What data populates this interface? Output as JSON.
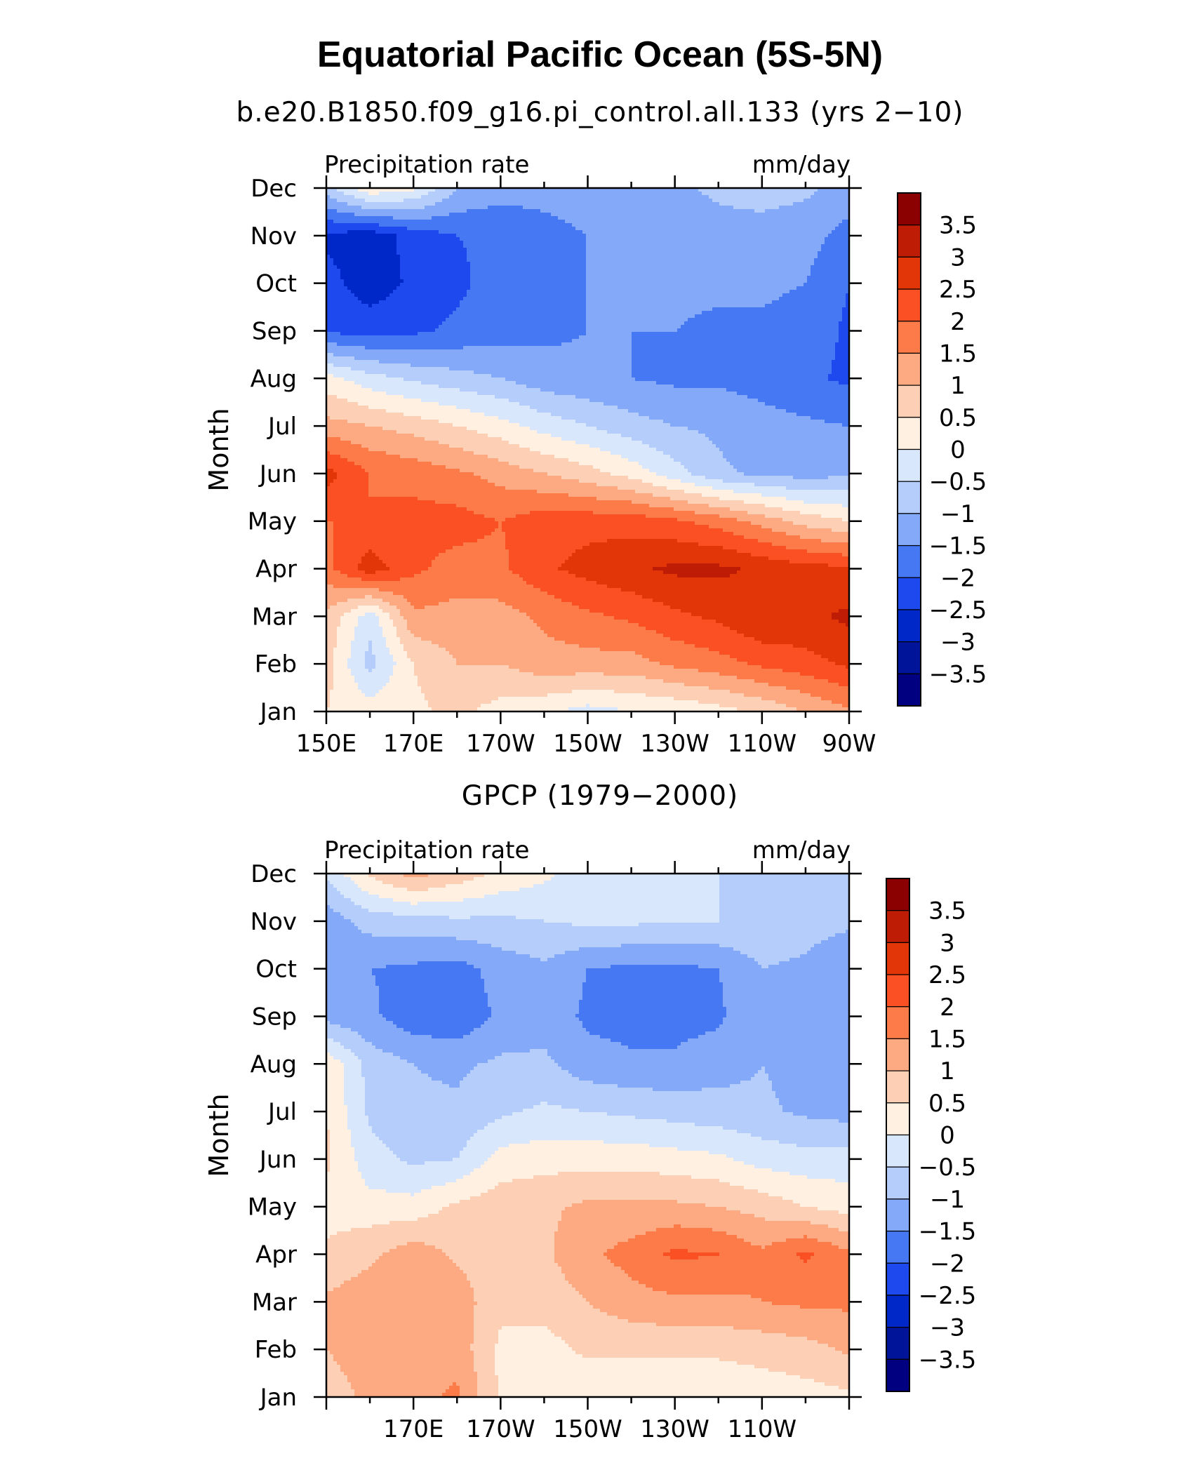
{
  "title": "Equatorial Pacific Ocean (5S-5N)",
  "chart_data": [
    {
      "type": "heatmap",
      "subtitle": "b.e20.B1850.f09_g16.pi_control.all.133 (yrs 2−10)",
      "left_label": "Precipitation rate",
      "right_label": "mm/day",
      "ylabel": "Month",
      "x_tick_labels": [
        "150E",
        "170E",
        "170W",
        "150W",
        "130W",
        "110W",
        "90W"
      ],
      "y_tick_labels": [
        "Jan",
        "Feb",
        "Mar",
        "Apr",
        "May",
        "Jun",
        "Jul",
        "Aug",
        "Sep",
        "Oct",
        "Nov",
        "Dec"
      ],
      "x": [
        150,
        160,
        170,
        180,
        190,
        200,
        210,
        220,
        230,
        240,
        250,
        260,
        270
      ],
      "xlim": [
        150,
        270
      ],
      "months": [
        1,
        2,
        3,
        4,
        5,
        6,
        7,
        8,
        9,
        10,
        11,
        12
      ],
      "values": [
        [
          0.5,
          0.3,
          0.4,
          0.6,
          0.3,
          0.1,
          -0.2,
          0.0,
          0.1,
          0.3,
          0.6,
          1.0,
          1.4
        ],
        [
          0.7,
          -0.7,
          0.5,
          1.0,
          1.0,
          1.3,
          1.3,
          1.3,
          1.6,
          1.8,
          2.1,
          2.3,
          2.6
        ],
        [
          0.9,
          -0.3,
          1.4,
          1.3,
          1.3,
          1.6,
          1.9,
          2.1,
          2.4,
          2.6,
          3.0,
          2.9,
          3.1
        ],
        [
          1.8,
          2.8,
          2.1,
          1.8,
          1.9,
          2.4,
          2.7,
          2.9,
          3.1,
          3.1,
          2.9,
          2.7,
          2.6
        ],
        [
          2.0,
          2.0,
          2.2,
          2.2,
          2.0,
          2.3,
          2.3,
          2.3,
          2.1,
          1.8,
          1.3,
          0.8,
          0.5
        ],
        [
          2.7,
          2.0,
          1.8,
          1.6,
          1.3,
          1.0,
          0.7,
          0.3,
          -0.3,
          -0.9,
          -1.1,
          -1.2,
          -1.1
        ],
        [
          1.2,
          1.0,
          0.8,
          0.5,
          0.2,
          -0.2,
          -0.5,
          -0.8,
          -1.0,
          -1.1,
          -1.3,
          -1.4,
          -1.5
        ],
        [
          0.2,
          -0.3,
          -0.6,
          -0.8,
          -1.0,
          -1.3,
          -1.4,
          -1.5,
          -1.6,
          -1.6,
          -1.7,
          -1.9,
          -2.1
        ],
        [
          -2.1,
          -2.2,
          -2.1,
          -1.9,
          -1.7,
          -1.6,
          -1.5,
          -1.5,
          -1.5,
          -1.6,
          -1.6,
          -1.7,
          -2.1
        ],
        [
          -2.3,
          -2.8,
          -2.4,
          -2.1,
          -1.8,
          -1.6,
          -1.5,
          -1.4,
          -1.4,
          -1.4,
          -1.4,
          -1.5,
          -2.0
        ],
        [
          -2.6,
          -2.8,
          -2.3,
          -2.0,
          -1.9,
          -1.7,
          -1.5,
          -1.3,
          -1.3,
          -1.2,
          -1.2,
          -1.3,
          -1.7
        ],
        [
          -0.7,
          0.4,
          0.1,
          -1.0,
          -1.3,
          -1.3,
          -1.2,
          -1.2,
          -1.1,
          -0.9,
          -0.8,
          -0.9,
          -1.2
        ]
      ]
    },
    {
      "type": "heatmap",
      "subtitle": "GPCP (1979−2000)",
      "left_label": "Precipitation rate",
      "right_label": "mm/day",
      "ylabel": "Month",
      "x_tick_labels": [
        "170E",
        "170W",
        "150W",
        "130W",
        "110W"
      ],
      "y_tick_labels": [
        "Jan",
        "Feb",
        "Mar",
        "Apr",
        "May",
        "Jun",
        "Jul",
        "Aug",
        "Sep",
        "Oct",
        "Nov",
        "Dec"
      ],
      "x": [
        150,
        160,
        170,
        180,
        190,
        200,
        210,
        220,
        230,
        240,
        250,
        260,
        270
      ],
      "xlim": [
        150,
        270
      ],
      "months": [
        1,
        2,
        3,
        4,
        5,
        6,
        7,
        8,
        9,
        10,
        11,
        12
      ],
      "values": [
        [
          0.8,
          1.1,
          1.3,
          1.6,
          0.4,
          0.2,
          0.1,
          0.0,
          0.1,
          0.1,
          0.2,
          0.3,
          0.4
        ],
        [
          1.0,
          1.2,
          1.4,
          1.3,
          0.4,
          0.3,
          0.6,
          0.6,
          0.6,
          0.6,
          0.7,
          0.8,
          1.1
        ],
        [
          1.1,
          1.3,
          1.4,
          1.3,
          0.6,
          0.7,
          1.0,
          1.3,
          1.4,
          1.4,
          1.5,
          1.6,
          1.6
        ],
        [
          0.6,
          0.9,
          1.3,
          0.9,
          0.8,
          0.9,
          1.4,
          1.7,
          2.1,
          2.0,
          1.6,
          2.1,
          1.6
        ],
        [
          0.3,
          0.2,
          0.2,
          0.6,
          0.8,
          0.9,
          1.1,
          1.1,
          1.1,
          1.0,
          0.8,
          0.5,
          0.3
        ],
        [
          0.6,
          -0.3,
          -0.6,
          -0.5,
          0.2,
          0.3,
          0.3,
          0.3,
          0.2,
          0.1,
          -0.2,
          -0.3,
          -0.3
        ],
        [
          0.5,
          -0.6,
          -0.9,
          -0.9,
          -0.6,
          -0.4,
          -0.5,
          -0.6,
          -0.7,
          -0.8,
          -0.9,
          -1.1,
          -1.2
        ],
        [
          0.4,
          -0.7,
          -1.0,
          -1.1,
          -0.9,
          -0.9,
          -1.3,
          -1.4,
          -1.4,
          -1.2,
          -1.0,
          -1.2,
          -1.2
        ],
        [
          -1.2,
          -1.4,
          -1.8,
          -1.9,
          -1.4,
          -1.2,
          -1.6,
          -1.7,
          -1.7,
          -1.6,
          -1.0,
          -1.1,
          -1.3
        ],
        [
          -1.1,
          -1.5,
          -1.6,
          -1.7,
          -1.3,
          -1.1,
          -1.5,
          -1.6,
          -1.6,
          -1.5,
          -1.0,
          -1.1,
          -1.4
        ],
        [
          -1.3,
          -0.8,
          -0.7,
          -0.6,
          -0.6,
          -0.5,
          -0.4,
          -0.4,
          -0.5,
          -0.5,
          -0.6,
          -0.8,
          -0.9
        ],
        [
          -0.4,
          0.6,
          1.2,
          0.8,
          0.4,
          0.1,
          -0.2,
          -0.4,
          -0.5,
          -0.5,
          -0.6,
          -0.6,
          -0.6
        ]
      ]
    }
  ],
  "colorbar": {
    "levels": [
      -3.5,
      -3,
      -2.5,
      -2,
      -1.5,
      -1,
      -0.5,
      0,
      0.5,
      1,
      1.5,
      2,
      2.5,
      3,
      3.5
    ],
    "labels": [
      "3.5",
      "3",
      "2.5",
      "2",
      "1.5",
      "1",
      "0.5",
      "0",
      "−0.5",
      "−1",
      "−1.5",
      "−2",
      "−2.5",
      "−3",
      "−3.5"
    ],
    "colors": [
      "#000080",
      "#001499",
      "#0028c8",
      "#1d49ef",
      "#4678f4",
      "#83a9f8",
      "#b4cdfb",
      "#d9e7fd",
      "#fff0e2",
      "#fdcfb5",
      "#fdaa83",
      "#fd7b48",
      "#fb5023",
      "#e23608",
      "#be1c05",
      "#8b0000"
    ]
  }
}
